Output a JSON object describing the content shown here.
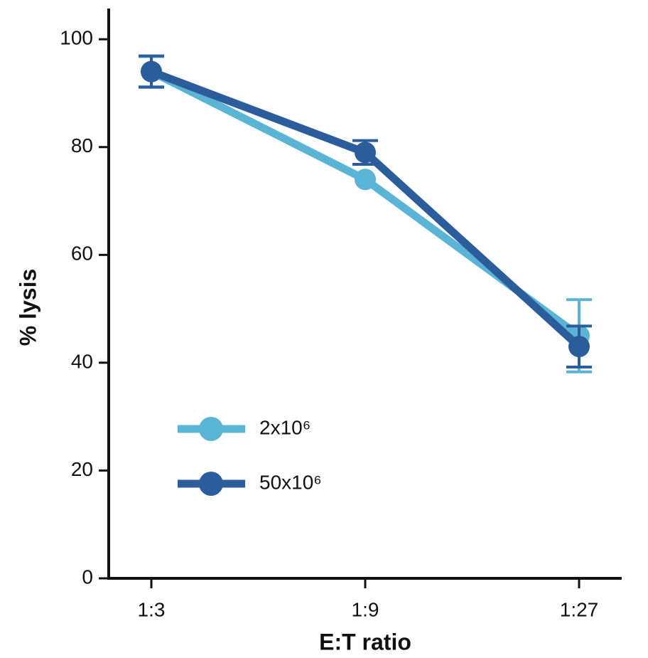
{
  "chart_data": {
    "type": "line",
    "x_label": "E:T ratio",
    "y_label": "% lysis",
    "categories": [
      "1:3",
      "1:9",
      "1:27"
    ],
    "series": [
      {
        "name": "2x10⁶",
        "color": "#5ab4d6",
        "values": [
          94,
          74,
          45
        ],
        "errors": [
          2.8,
          null,
          6.7
        ]
      },
      {
        "name": "50x10⁶",
        "color": "#2b5c9b",
        "values": [
          94,
          79,
          43
        ],
        "errors": [
          2.9,
          2.2,
          3.8
        ]
      }
    ],
    "ylim": [
      0,
      105.7
    ],
    "yticks": [
      0,
      20,
      40,
      60,
      80,
      100
    ],
    "legend": "lower-left"
  }
}
